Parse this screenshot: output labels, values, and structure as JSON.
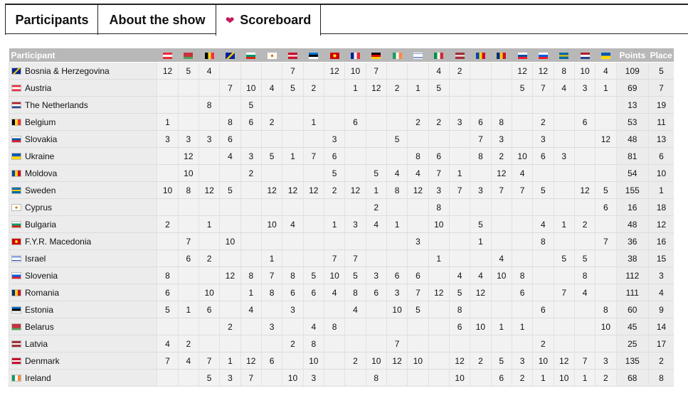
{
  "tabs": [
    {
      "label": "Participants"
    },
    {
      "label": "About the show"
    },
    {
      "label": "Scoreboard",
      "icon": "heart-icon"
    }
  ],
  "header": {
    "participant": "Participant",
    "points": "Points",
    "place": "Place"
  },
  "flag_colors": {
    "AT": "linear-gradient(#ed2939 33%,#fff 33%,#fff 66%,#ed2939 66%)",
    "BY": "linear-gradient(#c8313e 66%,#4aa657 66%)",
    "BE": "linear-gradient(90deg,#000 33%,#fdda24 33%,#fdda24 66%,#ef3340 66%)",
    "BA": "linear-gradient(135deg,#002395 45%,#fecb00 45%,#fecb00 60%,#002395 60%)",
    "BG": "linear-gradient(#fff 33%,#00966e 33%,#00966e 66%,#d62612 66%)",
    "CY": "radial-gradient(circle,#d57800 20%,#fff 25%)",
    "DK": "linear-gradient(#c8102e 40%,#fff 40%,#fff 60%,#c8102e 60%)",
    "EE": "linear-gradient(#0072ce 33%,#000 33%,#000 66%,#fff 66%)",
    "MK": "radial-gradient(circle,#f8e92e 25%,#d20000 30%)",
    "FR": "linear-gradient(90deg,#002395 33%,#fff 33%,#fff 66%,#ed2939 66%)",
    "DE": "linear-gradient(#000 33%,#dd0000 33%,#dd0000 66%,#ffce00 66%)",
    "IE": "linear-gradient(90deg,#169b62 33%,#fff 33%,#fff 66%,#ff883e 66%)",
    "IL": "linear-gradient(#fff 15%,#0038b8 15%,#0038b8 25%,#fff 25%,#fff 75%,#0038b8 75%,#0038b8 85%,#fff 85%)",
    "IT": "linear-gradient(90deg,#009246 33%,#fff 33%,#fff 66%,#ce2b37 66%)",
    "LV": "linear-gradient(#9e3039 40%,#fff 40%,#fff 60%,#9e3039 60%)",
    "MD": "linear-gradient(90deg,#0046ae 33%,#ffd200 33%,#ffd200 66%,#cc092f 66%)",
    "RO": "linear-gradient(90deg,#002b7f 33%,#fcd116 33%,#fcd116 66%,#ce1126 66%)",
    "SK": "linear-gradient(#fff 33%,#0b4ea2 33%,#0b4ea2 66%,#ee1c25 66%)",
    "SI": "linear-gradient(#fff 33%,#005ce5 33%,#005ce5 66%,#ed1c24 66%)",
    "SE": "linear-gradient(#006aa7 40%,#fecc00 40%,#fecc00 60%,#006aa7 60%)",
    "NL": "linear-gradient(#ae1c28 33%,#fff 33%,#fff 66%,#21468b 66%)",
    "UA": "linear-gradient(#0057b7 50%,#ffd700 50%)"
  },
  "columns": [
    "AT",
    "BY",
    "BE",
    "BA",
    "BG",
    "CY",
    "DK",
    "EE",
    "MK",
    "FR",
    "DE",
    "IE",
    "IL",
    "IT",
    "LV",
    "MD",
    "RO",
    "SK",
    "SI",
    "SE",
    "NL",
    "UA"
  ],
  "rows": [
    {
      "code": "BA",
      "name": "Bosnia & Herzegovina",
      "scores": [
        "12",
        "5",
        "4",
        "",
        "",
        "",
        "7",
        "",
        "12",
        "10",
        "7",
        "",
        "",
        "4",
        "2",
        "",
        "",
        "12",
        "12",
        "8",
        "10",
        "4"
      ],
      "points": "109",
      "place": "5"
    },
    {
      "code": "AT",
      "name": "Austria",
      "scores": [
        "",
        "",
        "",
        "7",
        "10",
        "4",
        "5",
        "2",
        "",
        "1",
        "12",
        "2",
        "1",
        "5",
        "",
        "",
        "",
        "5",
        "7",
        "4",
        "3",
        "1"
      ],
      "points": "69",
      "place": "7"
    },
    {
      "code": "NL",
      "name": "The Netherlands",
      "scores": [
        "",
        "",
        "8",
        "",
        "5",
        "",
        "",
        "",
        "",
        "",
        "",
        "",
        "",
        "",
        "",
        "",
        "",
        "",
        "",
        "",
        "",
        ""
      ],
      "points": "13",
      "place": "19"
    },
    {
      "code": "BE",
      "name": "Belgium",
      "scores": [
        "1",
        "",
        "",
        "8",
        "6",
        "2",
        "",
        "1",
        "",
        "6",
        "",
        "",
        "2",
        "2",
        "3",
        "6",
        "8",
        "",
        "2",
        "",
        "6",
        ""
      ],
      "points": "53",
      "place": "11"
    },
    {
      "code": "SK",
      "name": "Slovakia",
      "scores": [
        "3",
        "3",
        "3",
        "6",
        "",
        "",
        "",
        "",
        "3",
        "",
        "",
        "5",
        "",
        "",
        "",
        "7",
        "3",
        "",
        "3",
        "",
        "",
        "12"
      ],
      "points": "48",
      "place": "13"
    },
    {
      "code": "UA",
      "name": "Ukraine",
      "scores": [
        "",
        "12",
        "",
        "4",
        "3",
        "5",
        "1",
        "7",
        "6",
        "",
        "",
        "",
        "8",
        "6",
        "",
        "8",
        "2",
        "10",
        "6",
        "3",
        "",
        ""
      ],
      "points": "81",
      "place": "6"
    },
    {
      "code": "MD",
      "name": "Moldova",
      "scores": [
        "",
        "10",
        "",
        "",
        "2",
        "",
        "",
        "",
        "5",
        "",
        "5",
        "4",
        "4",
        "7",
        "1",
        "",
        "12",
        "4",
        "",
        "",
        "",
        ""
      ],
      "points": "54",
      "place": "10"
    },
    {
      "code": "SE",
      "name": "Sweden",
      "scores": [
        "10",
        "8",
        "12",
        "5",
        "",
        "12",
        "12",
        "12",
        "2",
        "12",
        "1",
        "8",
        "12",
        "3",
        "7",
        "3",
        "7",
        "7",
        "5",
        "",
        "12",
        "5"
      ],
      "points": "155",
      "place": "1"
    },
    {
      "code": "CY",
      "name": "Cyprus",
      "scores": [
        "",
        "",
        "",
        "",
        "",
        "",
        "",
        "",
        "",
        "",
        "2",
        "",
        "",
        "8",
        "",
        "",
        "",
        "",
        "",
        "",
        "",
        "6"
      ],
      "points": "16",
      "place": "18"
    },
    {
      "code": "BG",
      "name": "Bulgaria",
      "scores": [
        "2",
        "",
        "1",
        "",
        "",
        "10",
        "4",
        "",
        "1",
        "3",
        "4",
        "1",
        "",
        "10",
        "",
        "5",
        "",
        "",
        "4",
        "1",
        "2",
        ""
      ],
      "points": "48",
      "place": "12"
    },
    {
      "code": "MK",
      "name": "F.Y.R. Macedonia",
      "scores": [
        "",
        "7",
        "",
        "10",
        "",
        "",
        "",
        "",
        "",
        "",
        "",
        "",
        "3",
        "",
        "",
        "1",
        "",
        "",
        "8",
        "",
        "",
        "7"
      ],
      "points": "36",
      "place": "16"
    },
    {
      "code": "IL",
      "name": "Israel",
      "scores": [
        "",
        "6",
        "2",
        "",
        "",
        "1",
        "",
        "",
        "7",
        "7",
        "",
        "",
        "",
        "1",
        "",
        "",
        "4",
        "",
        "",
        "5",
        "5",
        ""
      ],
      "points": "38",
      "place": "15"
    },
    {
      "code": "SI",
      "name": "Slovenia",
      "scores": [
        "8",
        "",
        "",
        "12",
        "8",
        "7",
        "8",
        "5",
        "10",
        "5",
        "3",
        "6",
        "6",
        "",
        "4",
        "4",
        "10",
        "8",
        "",
        "",
        "8",
        ""
      ],
      "points": "112",
      "place": "3"
    },
    {
      "code": "RO",
      "name": "Romania",
      "scores": [
        "6",
        "",
        "10",
        "",
        "1",
        "8",
        "6",
        "6",
        "4",
        "8",
        "6",
        "3",
        "7",
        "12",
        "5",
        "12",
        "",
        "6",
        "",
        "7",
        "4",
        ""
      ],
      "points": "111",
      "place": "4"
    },
    {
      "code": "EE",
      "name": "Estonia",
      "scores": [
        "5",
        "1",
        "6",
        "",
        "4",
        "",
        "3",
        "",
        "",
        "4",
        "",
        "10",
        "5",
        "",
        "8",
        "",
        "",
        "",
        "6",
        "",
        "",
        "8"
      ],
      "points": "60",
      "place": "9"
    },
    {
      "code": "BY",
      "name": "Belarus",
      "scores": [
        "",
        "",
        "",
        "2",
        "",
        "3",
        "",
        "4",
        "8",
        "",
        "",
        "",
        "",
        "",
        "6",
        "10",
        "1",
        "1",
        "",
        "",
        "",
        "10"
      ],
      "points": "45",
      "place": "14"
    },
    {
      "code": "LV",
      "name": "Latvia",
      "scores": [
        "4",
        "2",
        "",
        "",
        "",
        "",
        "2",
        "8",
        "",
        "",
        "",
        "7",
        "",
        "",
        "",
        "",
        "",
        "",
        "2",
        "",
        "",
        ""
      ],
      "points": "25",
      "place": "17"
    },
    {
      "code": "DK",
      "name": "Denmark",
      "scores": [
        "7",
        "4",
        "7",
        "1",
        "12",
        "6",
        "",
        "10",
        "",
        "2",
        "10",
        "12",
        "10",
        "",
        "12",
        "2",
        "5",
        "3",
        "10",
        "12",
        "7",
        "3"
      ],
      "points": "135",
      "place": "2"
    },
    {
      "code": "IE",
      "name": "Ireland",
      "scores": [
        "",
        "",
        "5",
        "3",
        "7",
        "",
        "10",
        "3",
        "",
        "",
        "8",
        "",
        "",
        "",
        "10",
        "",
        "6",
        "2",
        "1",
        "10",
        "1",
        "2"
      ],
      "points": "68",
      "place": "8"
    }
  ]
}
